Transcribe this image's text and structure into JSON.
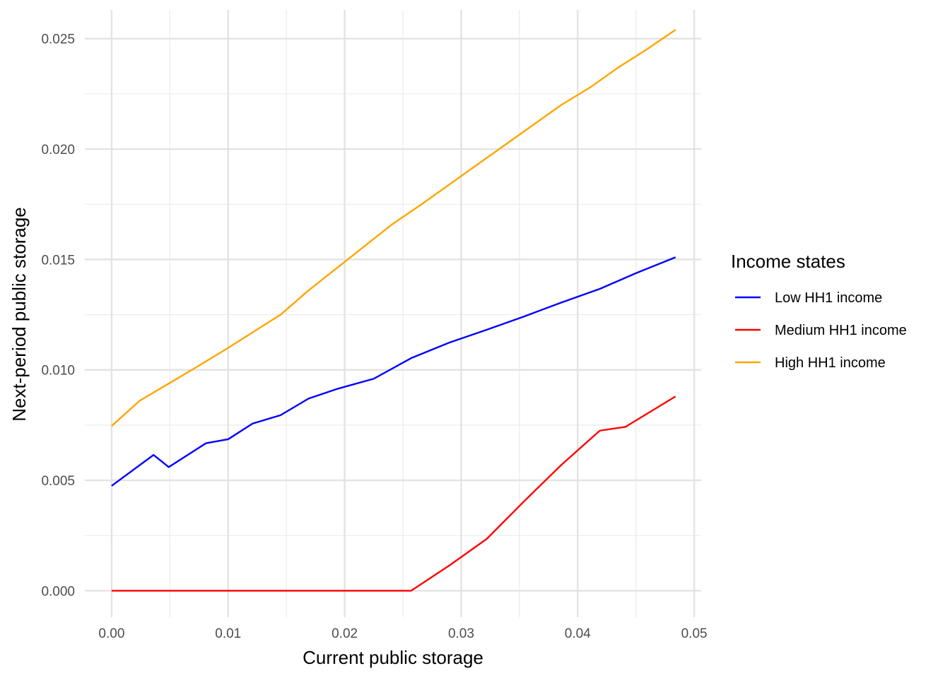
{
  "chart_data": {
    "type": "line",
    "title": "",
    "xlabel": "Current public storage",
    "ylabel": "Next-period public storage",
    "xlim": [
      -0.0023,
      0.0506
    ],
    "ylim": [
      -0.0012,
      0.0263
    ],
    "x_ticks": [
      0.0,
      0.01,
      0.02,
      0.03,
      0.04,
      0.05
    ],
    "x_tick_labels": [
      "0.00",
      "0.01",
      "0.02",
      "0.03",
      "0.04",
      "0.05"
    ],
    "y_ticks": [
      0.0,
      0.005,
      0.01,
      0.015,
      0.02,
      0.025
    ],
    "y_tick_labels": [
      "0.000",
      "0.005",
      "0.010",
      "0.015",
      "0.020",
      "0.025"
    ],
    "grid": true,
    "legend": {
      "title": "Income states",
      "placement": "right"
    },
    "series": [
      {
        "name": "Low HH1 income",
        "color": "#0000ff",
        "x": [
          0.0,
          0.0036,
          0.0049,
          0.0081,
          0.01,
          0.0121,
          0.0145,
          0.0169,
          0.0193,
          0.0225,
          0.0257,
          0.029,
          0.0322,
          0.0354,
          0.0386,
          0.0419,
          0.0451,
          0.0484
        ],
        "y": [
          0.00475,
          0.00615,
          0.0056,
          0.00668,
          0.00686,
          0.00757,
          0.00795,
          0.0087,
          0.00913,
          0.0096,
          0.01053,
          0.01124,
          0.01182,
          0.01242,
          0.01305,
          0.01367,
          0.0144,
          0.0151
        ]
      },
      {
        "name": "Medium HH1 income",
        "color": "#ff0000",
        "x": [
          0.0,
          0.0257,
          0.029,
          0.0322,
          0.0354,
          0.0386,
          0.0419,
          0.0441,
          0.0484
        ],
        "y": [
          0.0,
          0.0,
          0.00115,
          0.00235,
          0.00405,
          0.0057,
          0.00725,
          0.00742,
          0.0088
        ]
      },
      {
        "name": "High HH1 income",
        "color": "#ffa500",
        "x": [
          0.0,
          0.0024,
          0.0048,
          0.0072,
          0.0097,
          0.0121,
          0.0145,
          0.0169,
          0.0193,
          0.0217,
          0.0241,
          0.0266,
          0.029,
          0.0314,
          0.0338,
          0.0362,
          0.0386,
          0.0411,
          0.0435,
          0.0459,
          0.0484
        ],
        "y": [
          0.00746,
          0.0086,
          0.00935,
          0.0101,
          0.0109,
          0.0117,
          0.0125,
          0.0136,
          0.0146,
          0.0156,
          0.0166,
          0.0175,
          0.0184,
          0.0193,
          0.0202,
          0.0211,
          0.022,
          0.0228,
          0.0237,
          0.0245,
          0.0254
        ]
      }
    ]
  }
}
